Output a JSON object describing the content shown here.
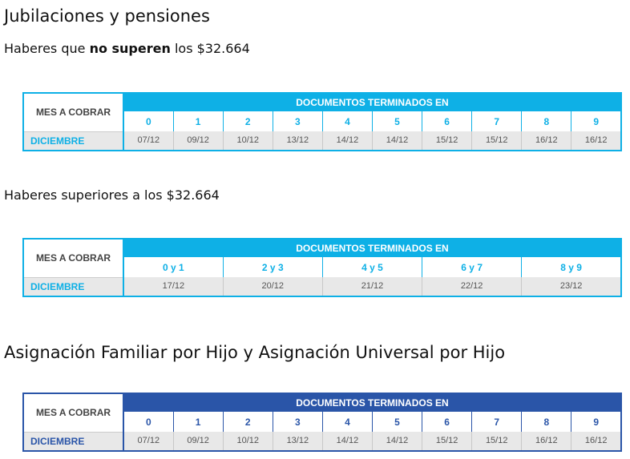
{
  "heading_1": "Jubilaciones y pensiones",
  "subtitle_1": {
    "before": "Haberes que ",
    "bold": "no superen",
    "after": " los $32.664"
  },
  "table_1": {
    "month_header": "MES A COBRAR",
    "docs_header": "DOCUMENTOS TERMINADOS EN",
    "digits": [
      "0",
      "1",
      "2",
      "3",
      "4",
      "5",
      "6",
      "7",
      "8",
      "9"
    ],
    "month": "DICIEMBRE",
    "dates": [
      "07/12",
      "09/12",
      "10/12",
      "13/12",
      "14/12",
      "14/12",
      "15/12",
      "15/12",
      "16/12",
      "16/12"
    ]
  },
  "subtitle_2": "Haberes superiores a los $32.664",
  "table_2": {
    "month_header": "MES A COBRAR",
    "docs_header": "DOCUMENTOS TERMINADOS EN",
    "digits": [
      "0 y 1",
      "2 y 3",
      "4 y 5",
      "6 y 7",
      "8 y 9"
    ],
    "month": "DICIEMBRE",
    "dates": [
      "17/12",
      "20/12",
      "21/12",
      "22/12",
      "23/12"
    ]
  },
  "heading_2": "Asignación Familiar por Hijo y Asignación Universal por Hijo",
  "table_3": {
    "month_header": "MES A COBRAR",
    "docs_header": "DOCUMENTOS TERMINADOS EN",
    "digits": [
      "0",
      "1",
      "2",
      "3",
      "4",
      "5",
      "6",
      "7",
      "8",
      "9"
    ],
    "month": "DICIEMBRE",
    "dates": [
      "07/12",
      "09/12",
      "10/12",
      "13/12",
      "14/12",
      "14/12",
      "15/12",
      "15/12",
      "16/12",
      "16/12"
    ]
  }
}
